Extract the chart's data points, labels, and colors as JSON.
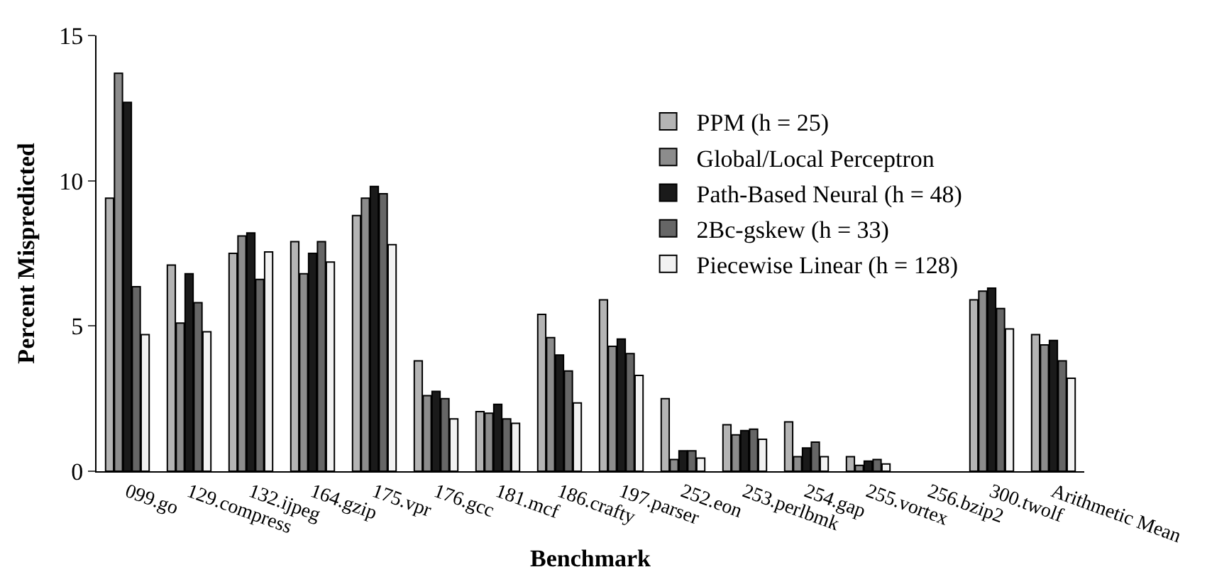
{
  "chart_data": {
    "type": "bar",
    "xlabel": "Benchmark",
    "ylabel": "Percent Mispredicted",
    "categories": [
      "099.go",
      "129.compress",
      "132.ijpeg",
      "164.gzip",
      "175.vpr",
      "176.gcc",
      "181.mcf",
      "186.crafty",
      "197.parser",
      "252.eon",
      "253.perlbmk",
      "254.gap",
      "255.vortex",
      "256.bzip2",
      "300.twolf",
      "Arithmetic Mean"
    ],
    "series": [
      {
        "name": "PPM (h = 25)",
        "color": "#b4b4b4",
        "values": [
          9.4,
          7.1,
          7.5,
          7.9,
          8.8,
          3.8,
          2.05,
          5.4,
          5.9,
          2.5,
          1.6,
          1.7,
          0.5,
          null,
          5.9,
          4.7
        ]
      },
      {
        "name": "Global/Local Perceptron",
        "color": "#8c8c8c",
        "values": [
          13.7,
          5.1,
          8.1,
          6.8,
          9.4,
          2.6,
          2.0,
          4.6,
          4.3,
          0.4,
          1.25,
          0.5,
          0.2,
          null,
          6.2,
          4.35
        ]
      },
      {
        "name": "Path-Based Neural (h = 48)",
        "color": "#1a1a1a",
        "values": [
          12.7,
          6.8,
          8.2,
          7.5,
          9.8,
          2.75,
          2.3,
          4.0,
          4.55,
          0.7,
          1.4,
          0.8,
          0.35,
          null,
          6.3,
          4.5
        ]
      },
      {
        "name": "2Bc-gskew (h = 33)",
        "color": "#666666",
        "values": [
          6.35,
          5.8,
          6.6,
          7.9,
          9.55,
          2.5,
          1.8,
          3.45,
          4.05,
          0.7,
          1.45,
          1.0,
          0.4,
          null,
          5.6,
          3.8
        ]
      },
      {
        "name": "Piecewise Linear (h = 128)",
        "color": "#f2f2f2",
        "values": [
          4.7,
          4.8,
          7.55,
          7.2,
          7.8,
          1.8,
          1.65,
          2.35,
          3.3,
          0.45,
          1.1,
          0.5,
          0.25,
          null,
          4.9,
          3.2
        ]
      }
    ],
    "ylim": [
      0,
      15
    ],
    "yticks": [
      0,
      5,
      10,
      15
    ],
    "grid": false,
    "legend": "top right"
  }
}
